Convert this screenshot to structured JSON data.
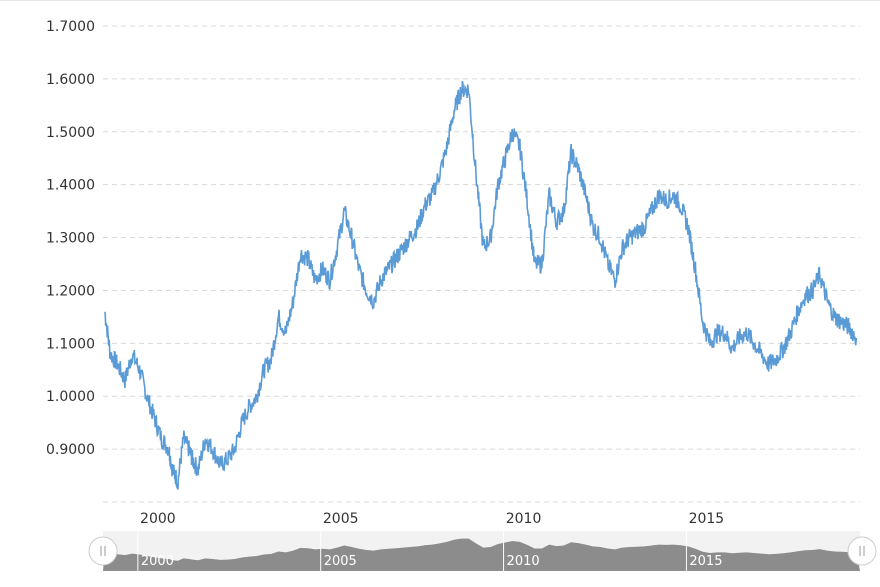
{
  "colors": {
    "line": "#5b9bd5",
    "grid": "#d8d8d8",
    "navigator_fill": "#8c8c8c",
    "navigator_bg": "#f2f2f2"
  },
  "chart_data": {
    "type": "line",
    "title": "",
    "xlabel": "",
    "ylabel": "",
    "xlim": [
      1998.5,
      2019.2
    ],
    "ylim": [
      0.8,
      1.7
    ],
    "y_ticks": [
      "1.7000",
      "1.6000",
      "1.5000",
      "1.4000",
      "1.3000",
      "1.2000",
      "1.1000",
      "1.0000",
      "0.9000"
    ],
    "y_tick_values": [
      1.7,
      1.6,
      1.5,
      1.4,
      1.3,
      1.2,
      1.1,
      1.0,
      0.9
    ],
    "x_ticks": [
      "2000",
      "2005",
      "2010",
      "2015"
    ],
    "x_tick_values": [
      2000,
      2005,
      2010,
      2015
    ],
    "grid": true,
    "legend": "none",
    "series": [
      {
        "x": [
          1998.55,
          1998.7,
          1998.9,
          1999.1,
          1999.3,
          1999.5,
          1999.7,
          1999.9,
          2000.1,
          2000.3,
          2000.4,
          2000.55,
          2000.7,
          2000.85,
          2000.95,
          2001.1,
          2001.3,
          2001.5,
          2001.7,
          2001.9,
          2002.1,
          2002.3,
          2002.5,
          2002.7,
          2002.9,
          2003.1,
          2003.3,
          2003.5,
          2003.7,
          2003.9,
          2004.1,
          2004.3,
          2004.5,
          2004.7,
          2004.9,
          2005.1,
          2005.3,
          2005.5,
          2005.7,
          2005.9,
          2006.1,
          2006.3,
          2006.5,
          2006.7,
          2006.9,
          2007.1,
          2007.3,
          2007.5,
          2007.7,
          2007.9,
          2008.1,
          2008.3,
          2008.5,
          2008.7,
          2008.9,
          2009.1,
          2009.3,
          2009.5,
          2009.7,
          2009.9,
          2010.1,
          2010.3,
          2010.5,
          2010.7,
          2010.9,
          2011.1,
          2011.3,
          2011.5,
          2011.7,
          2011.9,
          2012.1,
          2012.3,
          2012.5,
          2012.7,
          2012.9,
          2013.1,
          2013.3,
          2013.5,
          2013.7,
          2013.9,
          2014.1,
          2014.3,
          2014.5,
          2014.7,
          2014.9,
          2015.1,
          2015.3,
          2015.5,
          2015.7,
          2015.9,
          2016.1,
          2016.3,
          2016.5,
          2016.7,
          2016.9,
          2017.1,
          2017.3,
          2017.5,
          2017.7,
          2017.9,
          2018.1,
          2018.3,
          2018.5,
          2018.7,
          2018.9,
          2019.1
        ],
        "values": [
          1.16,
          1.08,
          1.06,
          1.03,
          1.08,
          1.05,
          1.0,
          0.96,
          0.92,
          0.9,
          0.86,
          0.84,
          0.92,
          0.9,
          0.88,
          0.86,
          0.92,
          0.9,
          0.87,
          0.88,
          0.9,
          0.95,
          0.98,
          1.0,
          1.05,
          1.07,
          1.15,
          1.12,
          1.18,
          1.27,
          1.26,
          1.22,
          1.24,
          1.22,
          1.28,
          1.35,
          1.3,
          1.24,
          1.2,
          1.18,
          1.22,
          1.24,
          1.26,
          1.28,
          1.3,
          1.32,
          1.36,
          1.38,
          1.42,
          1.47,
          1.54,
          1.58,
          1.58,
          1.42,
          1.28,
          1.3,
          1.4,
          1.45,
          1.5,
          1.47,
          1.37,
          1.25,
          1.25,
          1.38,
          1.33,
          1.35,
          1.46,
          1.43,
          1.38,
          1.32,
          1.3,
          1.25,
          1.22,
          1.28,
          1.3,
          1.31,
          1.32,
          1.35,
          1.38,
          1.37,
          1.38,
          1.36,
          1.32,
          1.24,
          1.14,
          1.1,
          1.12,
          1.12,
          1.09,
          1.11,
          1.12,
          1.1,
          1.08,
          1.06,
          1.07,
          1.09,
          1.12,
          1.16,
          1.19,
          1.2,
          1.23,
          1.18,
          1.15,
          1.14,
          1.13,
          1.11
        ]
      }
    ],
    "navigator": {
      "x_ticks": [
        "2000",
        "2005",
        "2010",
        "2015"
      ]
    }
  }
}
